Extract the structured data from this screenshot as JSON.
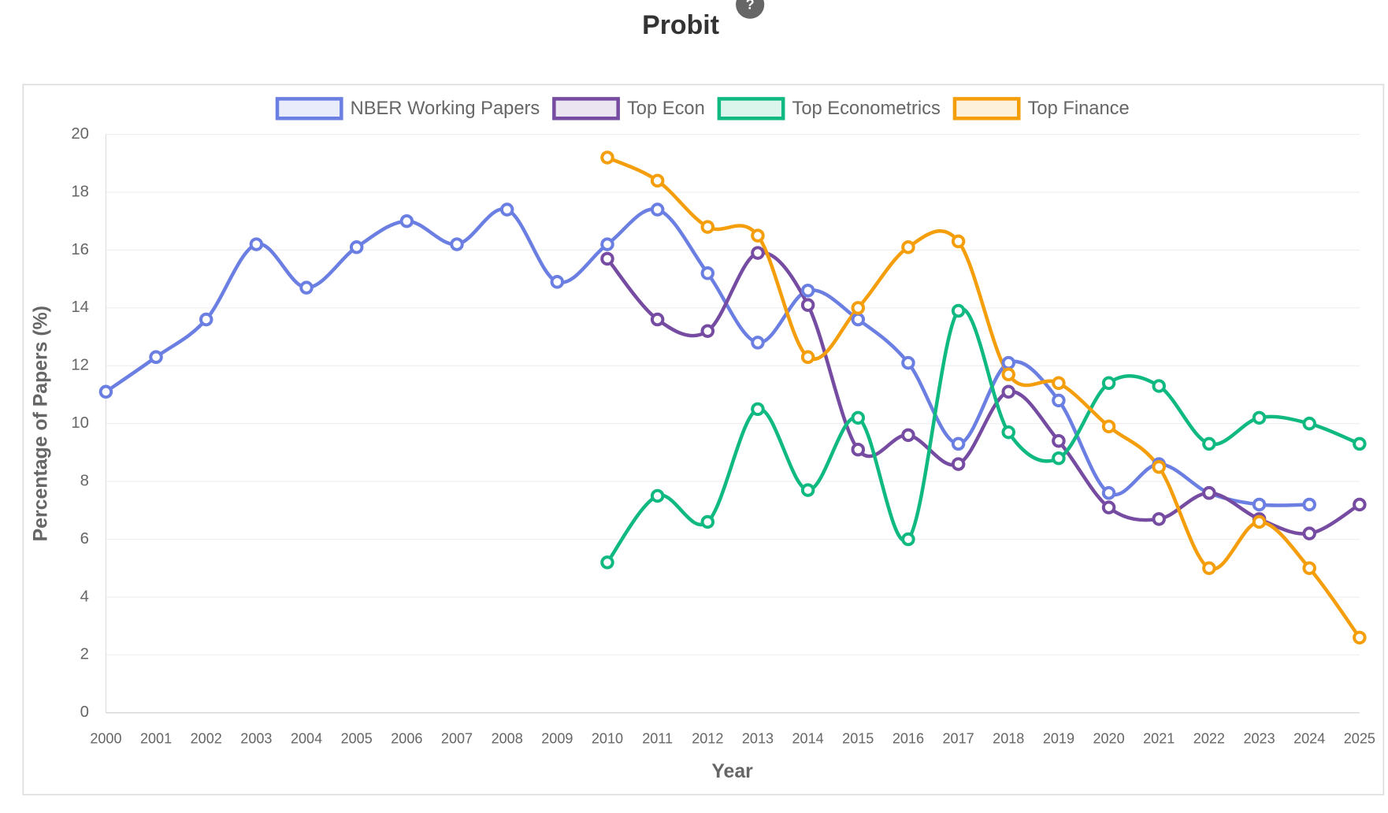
{
  "chart_data": {
    "type": "line",
    "title": "Probit",
    "help_icon": "?",
    "x_label": "Year",
    "y_label": "Percentage of Papers (%)",
    "categories": [
      "2000",
      "2001",
      "2002",
      "2003",
      "2004",
      "2005",
      "2006",
      "2007",
      "2008",
      "2009",
      "2010",
      "2011",
      "2012",
      "2013",
      "2014",
      "2015",
      "2016",
      "2017",
      "2018",
      "2019",
      "2020",
      "2021",
      "2022",
      "2023",
      "2024",
      "2025"
    ],
    "series": [
      {
        "name": "NBER Working Papers",
        "color": "#6b7fe3",
        "values": [
          11.1,
          12.3,
          13.6,
          16.2,
          14.7,
          16.1,
          17.0,
          16.2,
          17.4,
          14.9,
          16.2,
          17.4,
          15.2,
          12.8,
          14.6,
          13.6,
          12.1,
          9.3,
          12.1,
          10.8,
          7.6,
          8.6,
          7.6,
          7.2,
          7.2,
          null
        ]
      },
      {
        "name": "Top Econ",
        "color": "#764ba2",
        "values": [
          null,
          null,
          null,
          null,
          null,
          null,
          null,
          null,
          null,
          null,
          15.7,
          13.6,
          13.2,
          15.9,
          14.1,
          9.1,
          9.6,
          8.6,
          11.1,
          9.4,
          7.1,
          6.7,
          7.6,
          6.7,
          6.2,
          7.2
        ]
      },
      {
        "name": "Top Econometrics",
        "color": "#10b981",
        "values": [
          null,
          null,
          null,
          null,
          null,
          null,
          null,
          null,
          null,
          null,
          5.2,
          7.5,
          6.6,
          10.5,
          7.7,
          10.2,
          6.0,
          13.9,
          9.7,
          8.8,
          11.4,
          11.3,
          9.3,
          10.2,
          10.0,
          9.3
        ]
      },
      {
        "name": "Top Finance",
        "color": "#f59e0b",
        "values": [
          null,
          null,
          null,
          null,
          null,
          null,
          null,
          null,
          null,
          null,
          19.2,
          18.4,
          16.8,
          16.5,
          12.3,
          14.0,
          16.1,
          16.3,
          11.7,
          11.4,
          9.9,
          8.5,
          5.0,
          6.6,
          5.0,
          2.6
        ]
      }
    ],
    "ylim": [
      0,
      20
    ],
    "yticks": [
      0,
      2,
      4,
      6,
      8,
      10,
      12,
      14,
      16,
      18,
      20
    ],
    "grid": true,
    "legend": "top"
  }
}
